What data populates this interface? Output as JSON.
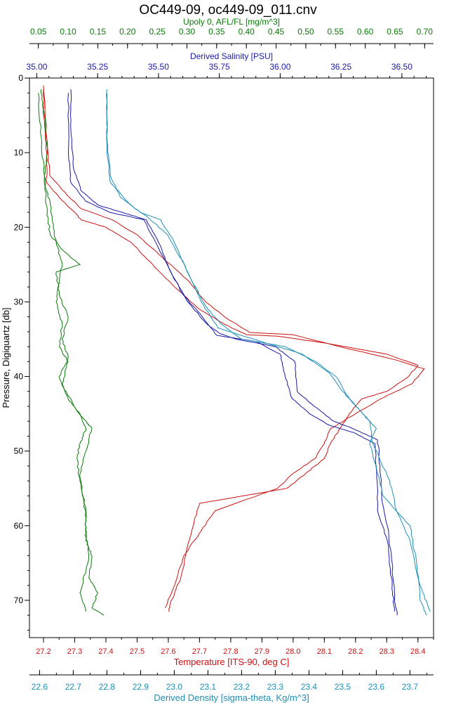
{
  "chart_data": {
    "type": "line",
    "title": "OC449-09, oc449-09_011.cnv",
    "ylabel": "Pressure, Digiquartz [db]",
    "ylim": [
      0,
      75
    ],
    "yticks": [
      0,
      10,
      20,
      30,
      40,
      50,
      60,
      70
    ],
    "axes": {
      "fluorescence": {
        "label": "Upoly 0, AFL/FL [mg/m^3]",
        "color": "#0a7a0a",
        "range": [
          0.035,
          0.715
        ],
        "ticks": [
          "0.05",
          "0.10",
          "0.15",
          "0.20",
          "0.25",
          "0.30",
          "0.35",
          "0.40",
          "0.45",
          "0.50",
          "0.55",
          "0.60",
          "0.65",
          "0.70"
        ]
      },
      "salinity": {
        "label": "Derived Salinity [PSU]",
        "color": "#1a1aa6",
        "range": [
          34.97,
          36.63
        ],
        "ticks": [
          "35.00",
          "35.25",
          "35.50",
          "35.75",
          "36.00",
          "36.25",
          "36.50"
        ]
      },
      "temperature": {
        "label": "Temperature [ITS-90, deg C]",
        "color": "#cc1111",
        "range": [
          27.155,
          28.45
        ],
        "ticks": [
          "27.2",
          "27.3",
          "27.4",
          "27.5",
          "27.6",
          "27.7",
          "27.8",
          "27.9",
          "28.0",
          "28.1",
          "28.2",
          "28.3",
          "28.4"
        ]
      },
      "density": {
        "label": "Derived Density [sigma-theta, Kg/m^3]",
        "color": "#1f8fb5",
        "range": [
          22.57,
          23.77
        ],
        "ticks": [
          "22.6",
          "22.7",
          "22.8",
          "22.9",
          "23.0",
          "23.1",
          "23.2",
          "23.3",
          "23.4",
          "23.5",
          "23.6",
          "23.7"
        ]
      }
    },
    "series": [
      {
        "name": "Temperature",
        "axis": "temperature",
        "color": "#cc1111",
        "downcast": [
          [
            27.2,
            1
          ],
          [
            27.2,
            5
          ],
          [
            27.21,
            10
          ],
          [
            27.21,
            14
          ],
          [
            27.25,
            16
          ],
          [
            27.3,
            18
          ],
          [
            27.32,
            19
          ],
          [
            27.4,
            20
          ],
          [
            27.48,
            22
          ],
          [
            27.55,
            25
          ],
          [
            27.62,
            28
          ],
          [
            27.7,
            31
          ],
          [
            27.78,
            33
          ],
          [
            27.85,
            34.4
          ],
          [
            27.95,
            34.6
          ],
          [
            28.1,
            35.5
          ],
          [
            28.3,
            37
          ],
          [
            28.4,
            38.5
          ],
          [
            28.37,
            40
          ],
          [
            28.3,
            42
          ],
          [
            28.22,
            43
          ],
          [
            28.18,
            45
          ],
          [
            28.15,
            47
          ],
          [
            28.12,
            49
          ],
          [
            28.1,
            51
          ],
          [
            28.04,
            53
          ],
          [
            27.98,
            55
          ],
          [
            27.7,
            57
          ],
          [
            27.68,
            60
          ],
          [
            27.66,
            63
          ],
          [
            27.64,
            67
          ],
          [
            27.61,
            70
          ],
          [
            27.6,
            71.5
          ]
        ],
        "upcast": [
          [
            27.2,
            1.5
          ],
          [
            27.21,
            8
          ],
          [
            27.22,
            13
          ],
          [
            27.26,
            15
          ],
          [
            27.32,
            17.5
          ],
          [
            27.42,
            19
          ],
          [
            27.5,
            21
          ],
          [
            27.58,
            24
          ],
          [
            27.66,
            27
          ],
          [
            27.72,
            30
          ],
          [
            27.78,
            32
          ],
          [
            27.86,
            34.1
          ],
          [
            28.0,
            34.4
          ],
          [
            28.15,
            36
          ],
          [
            28.33,
            37.8
          ],
          [
            28.42,
            39
          ],
          [
            28.38,
            41
          ],
          [
            28.28,
            43
          ],
          [
            28.2,
            45
          ],
          [
            28.12,
            47
          ],
          [
            28.1,
            49
          ],
          [
            28.07,
            51
          ],
          [
            28.0,
            53
          ],
          [
            27.95,
            55
          ],
          [
            27.75,
            58
          ],
          [
            27.7,
            61
          ],
          [
            27.65,
            64
          ],
          [
            27.62,
            68
          ],
          [
            27.59,
            71
          ]
        ]
      },
      {
        "name": "Salinity",
        "axis": "salinity",
        "color": "#1a1aa6",
        "downcast": [
          [
            35.14,
            1.5
          ],
          [
            35.14,
            7
          ],
          [
            35.15,
            12
          ],
          [
            35.18,
            15
          ],
          [
            35.25,
            17
          ],
          [
            35.35,
            18
          ],
          [
            35.45,
            19
          ],
          [
            35.5,
            22
          ],
          [
            35.55,
            26
          ],
          [
            35.62,
            30
          ],
          [
            35.7,
            33
          ],
          [
            35.75,
            34.2
          ],
          [
            35.82,
            35
          ],
          [
            35.98,
            36
          ],
          [
            36.06,
            38
          ],
          [
            36.07,
            42
          ],
          [
            36.14,
            44
          ],
          [
            36.22,
            46
          ],
          [
            36.3,
            47
          ],
          [
            36.4,
            48.5
          ],
          [
            36.41,
            52
          ],
          [
            36.42,
            57
          ],
          [
            36.44,
            60
          ],
          [
            36.46,
            65
          ],
          [
            36.47,
            70
          ],
          [
            36.48,
            72
          ]
        ],
        "upcast": [
          [
            35.13,
            2
          ],
          [
            35.13,
            10
          ],
          [
            35.14,
            14
          ],
          [
            35.2,
            16.5
          ],
          [
            35.3,
            18
          ],
          [
            35.44,
            19
          ],
          [
            35.52,
            24
          ],
          [
            35.6,
            29
          ],
          [
            35.68,
            32
          ],
          [
            35.74,
            34.5
          ],
          [
            35.9,
            35.3
          ],
          [
            36.0,
            37
          ],
          [
            36.02,
            40
          ],
          [
            36.05,
            43
          ],
          [
            36.12,
            45
          ],
          [
            36.2,
            46.5
          ],
          [
            36.3,
            47.5
          ],
          [
            36.39,
            49
          ],
          [
            36.4,
            55
          ],
          [
            36.4,
            58
          ],
          [
            36.44,
            62
          ],
          [
            36.46,
            68
          ],
          [
            36.47,
            71.5
          ]
        ]
      },
      {
        "name": "Density",
        "axis": "density",
        "color": "#1f8fb5",
        "downcast": [
          [
            22.8,
            1.5
          ],
          [
            22.8,
            8
          ],
          [
            22.81,
            13
          ],
          [
            22.84,
            16
          ],
          [
            22.9,
            18
          ],
          [
            22.96,
            19
          ],
          [
            23.0,
            22
          ],
          [
            23.05,
            27
          ],
          [
            23.1,
            31
          ],
          [
            23.14,
            33
          ],
          [
            23.2,
            35
          ],
          [
            23.33,
            36
          ],
          [
            23.42,
            38
          ],
          [
            23.48,
            40
          ],
          [
            23.52,
            43
          ],
          [
            23.56,
            45
          ],
          [
            23.6,
            47
          ],
          [
            23.58,
            49
          ],
          [
            23.6,
            52
          ],
          [
            23.62,
            56
          ],
          [
            23.7,
            60
          ],
          [
            23.72,
            65
          ],
          [
            23.73,
            70
          ],
          [
            23.75,
            72
          ]
        ],
        "upcast": [
          [
            22.8,
            2
          ],
          [
            22.8,
            10
          ],
          [
            22.81,
            14
          ],
          [
            22.87,
            17
          ],
          [
            22.93,
            19
          ],
          [
            22.98,
            21
          ],
          [
            23.03,
            25
          ],
          [
            23.08,
            30
          ],
          [
            23.13,
            33.5
          ],
          [
            23.25,
            35.2
          ],
          [
            23.38,
            37
          ],
          [
            23.46,
            39.5
          ],
          [
            23.5,
            42
          ],
          [
            23.54,
            44
          ],
          [
            23.58,
            46
          ],
          [
            23.59,
            49
          ],
          [
            23.64,
            54
          ],
          [
            23.66,
            58
          ],
          [
            23.7,
            62
          ],
          [
            23.73,
            68
          ],
          [
            23.76,
            71.5
          ]
        ]
      },
      {
        "name": "Fluorescence",
        "axis": "fluorescence",
        "color": "#0a7a0a",
        "downcast": [
          [
            0.055,
            1.5
          ],
          [
            0.06,
            5
          ],
          [
            0.065,
            10
          ],
          [
            0.06,
            14
          ],
          [
            0.07,
            17
          ],
          [
            0.075,
            20
          ],
          [
            0.08,
            22
          ],
          [
            0.09,
            25
          ],
          [
            0.085,
            27
          ],
          [
            0.08,
            30
          ],
          [
            0.09,
            33
          ],
          [
            0.085,
            36
          ],
          [
            0.1,
            38
          ],
          [
            0.09,
            41
          ],
          [
            0.11,
            44
          ],
          [
            0.13,
            46
          ],
          [
            0.14,
            47
          ],
          [
            0.13,
            50
          ],
          [
            0.12,
            53
          ],
          [
            0.125,
            56
          ],
          [
            0.13,
            59
          ],
          [
            0.13,
            62
          ],
          [
            0.14,
            64
          ],
          [
            0.135,
            67
          ],
          [
            0.15,
            69
          ],
          [
            0.14,
            71
          ],
          [
            0.16,
            72
          ]
        ],
        "upcast": [
          [
            0.05,
            2
          ],
          [
            0.055,
            8
          ],
          [
            0.06,
            13
          ],
          [
            0.065,
            18
          ],
          [
            0.07,
            21
          ],
          [
            0.09,
            23
          ],
          [
            0.12,
            25
          ],
          [
            0.08,
            26
          ],
          [
            0.085,
            29
          ],
          [
            0.1,
            32
          ],
          [
            0.09,
            35
          ],
          [
            0.1,
            37.5
          ],
          [
            0.085,
            40
          ],
          [
            0.1,
            43
          ],
          [
            0.12,
            45
          ],
          [
            0.13,
            47
          ],
          [
            0.12,
            49
          ],
          [
            0.115,
            51
          ],
          [
            0.12,
            54
          ],
          [
            0.13,
            58
          ],
          [
            0.13,
            61
          ],
          [
            0.135,
            64
          ],
          [
            0.13,
            66
          ],
          [
            0.12,
            69
          ],
          [
            0.13,
            71.5
          ]
        ]
      }
    ]
  }
}
